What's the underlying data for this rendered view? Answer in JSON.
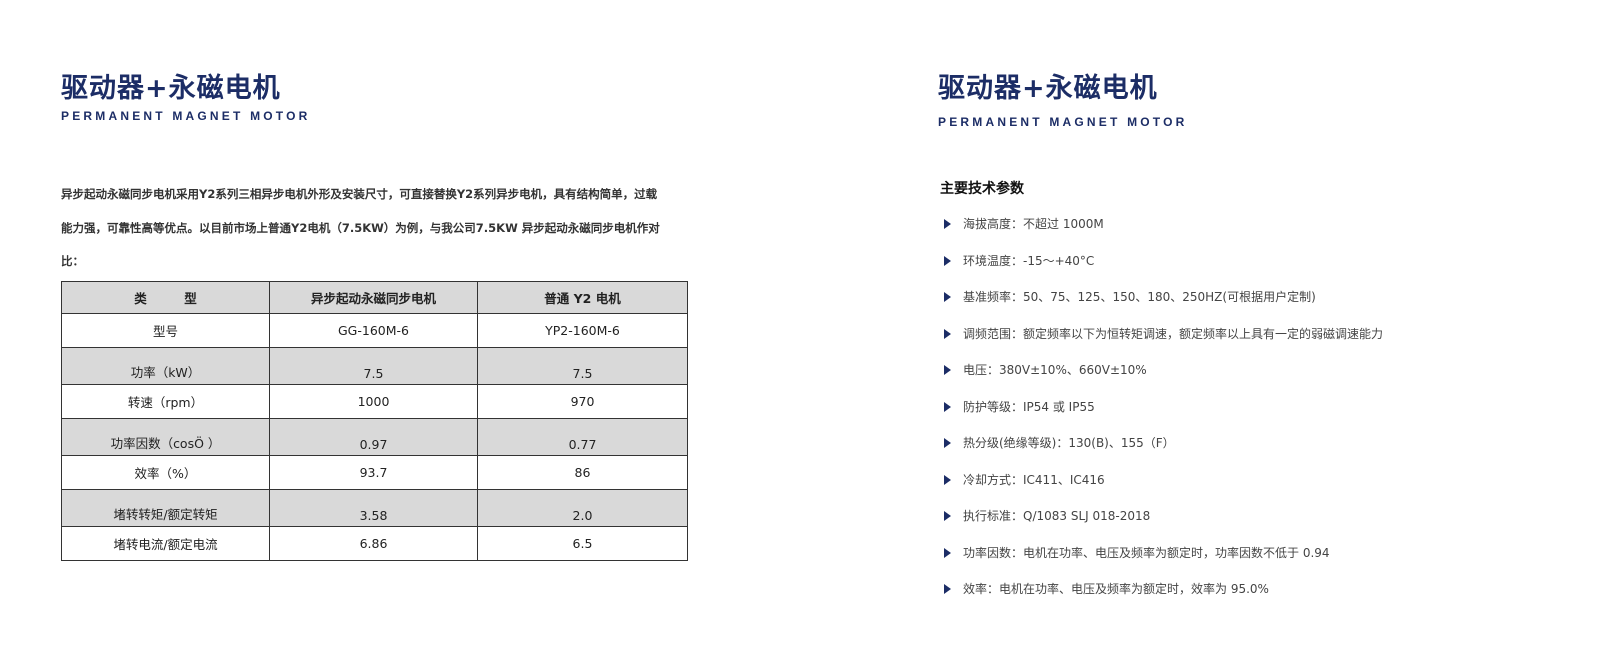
{
  "left": {
    "title": "驱动器+永磁电机",
    "subtitle": "PERMANENT MAGNET MOTOR",
    "intro": "异步起动永磁同步电机采用Y2系列三相异步电机外形及安装尺寸，可直接替换Y2系列异步电机，具有结构简单，过载能力强，可靠性高等优点。以目前市场上普通Y2电机（7.5KW）为例，与我公司7.5KW 异步起动永磁同步电机作对比：",
    "table": {
      "headers": [
        "类　　　型",
        "异步起动永磁同步电机",
        "普通 Y2 电机"
      ],
      "rows": [
        [
          "型号",
          "GG-160M-6",
          "YP2-160M-6"
        ],
        [
          "功率（kW）",
          "7.5",
          "7.5"
        ],
        [
          "转速（rpm）",
          "1000",
          "970"
        ],
        [
          "功率因数（cosÖ ）",
          "0.97",
          "0.77"
        ],
        [
          "效率（%）",
          "93.7",
          "86"
        ],
        [
          "堵转转矩/额定转矩",
          "3.58",
          "2.0"
        ],
        [
          "堵转电流/额定电流",
          "6.86",
          "6.5"
        ]
      ]
    }
  },
  "right": {
    "title": "驱动器+永磁电机",
    "subtitle": "PERMANENT MAGNET MOTOR",
    "heading": "主要技术参数",
    "bullet_icon": "triangle-right-icon",
    "items": [
      "海拔高度：不超过 1000M",
      "环境温度：-15～+40°C",
      "基准频率：50、75、125、150、180、250HZ(可根据用户定制)",
      "调频范围：额定频率以下为恒转矩调速，额定频率以上具有一定的弱磁调速能力",
      "电压：380V±10%、660V±10%",
      "防护等级：IP54 或 IP55",
      "热分级(绝缘等级)：130(B)、155（F）",
      "冷却方式：IC411、IC416",
      "执行标准：Q/1083 SLJ 018-2018",
      "功率因数：电机在功率、电压及频率为额定时，功率因数不低于 0.94",
      "效率：电机在功率、电压及频率为额定时，效率为 95.0%"
    ]
  },
  "colors": {
    "brand": "#1c2d66",
    "table_gray": "#d9d9d9"
  }
}
